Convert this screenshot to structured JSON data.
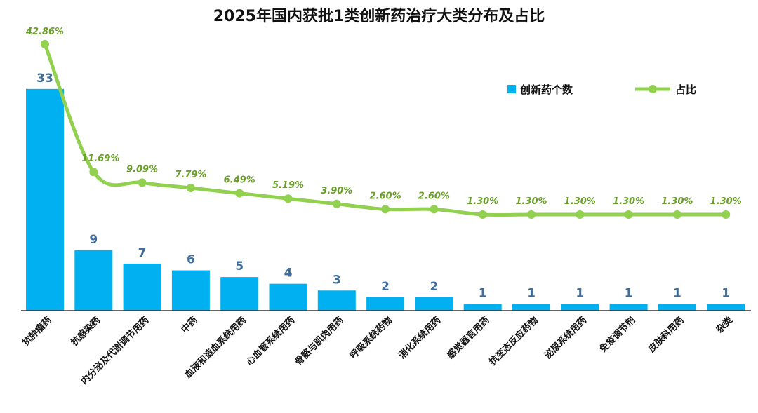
{
  "chart_data": {
    "type": "bar",
    "title": "2025年国内获批1类创新药治疗大类分布及占比",
    "categories": [
      "抗肿瘤药",
      "抗感染药",
      "内分泌及代谢调节用药",
      "中药",
      "血液和造血系统用药",
      "心血管系统用药",
      "骨骼与肌肉用药",
      "呼吸系统药物",
      "消化系统用药",
      "感觉器官用药",
      "抗变态反应药物",
      "泌尿系统用药",
      "免疫调节剂",
      "皮肤科用药",
      "杂类"
    ],
    "series": [
      {
        "name": "创新药个数",
        "type": "bar",
        "color": "#00b0f0",
        "values": [
          33,
          9,
          7,
          6,
          5,
          4,
          3,
          2,
          2,
          1,
          1,
          1,
          1,
          1,
          1
        ]
      },
      {
        "name": "占比",
        "type": "line",
        "color": "#92d050",
        "values": [
          42.86,
          11.69,
          9.09,
          7.79,
          6.49,
          5.19,
          3.9,
          2.6,
          2.6,
          1.3,
          1.3,
          1.3,
          1.3,
          1.3,
          1.3
        ],
        "labels": [
          "42.86%",
          "11.69%",
          "9.09%",
          "7.79%",
          "6.49%",
          "5.19%",
          "3.90%",
          "2.60%",
          "2.60%",
          "1.30%",
          "1.30%",
          "1.30%",
          "1.30%",
          "1.30%",
          "1.30%"
        ]
      }
    ],
    "legend": "top-right",
    "grid": false
  }
}
